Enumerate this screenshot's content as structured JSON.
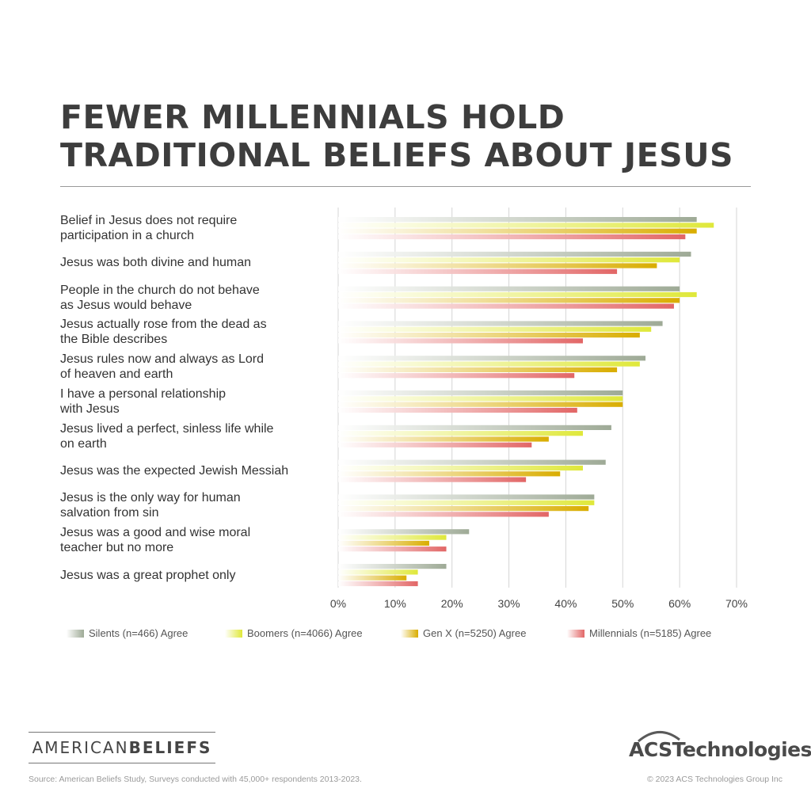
{
  "title_lines": [
    "FEWER MILLENNIALS HOLD",
    "TRADITIONAL BELIEFS ABOUT JESUS"
  ],
  "chart_data": {
    "type": "bar",
    "orientation": "horizontal",
    "categories": [
      "Belief in Jesus does not require\nparticipation in a church",
      "Jesus was both divine and human",
      "People in the church do not behave\nas Jesus would behave",
      "Jesus actually rose from the dead as\nthe Bible describes",
      "Jesus rules now and always as Lord\nof heaven and earth",
      "I have a personal relationship\nwith Jesus",
      "Jesus lived a perfect, sinless life while\non earth",
      "Jesus was the expected Jewish Messiah",
      "Jesus is the only way for human\nsalvation from sin",
      "Jesus was a good and wise moral\nteacher but no more",
      "Jesus was a great prophet only"
    ],
    "series": [
      {
        "name": "Silents (n=466) Agree",
        "color": "#9eaa96",
        "values": [
          63,
          62,
          60,
          57,
          54,
          50,
          48,
          47,
          45,
          23,
          19
        ]
      },
      {
        "name": "Boomers (n=4066) Agree",
        "color": "#dfe83a",
        "values": [
          66,
          60,
          63,
          55,
          53,
          50,
          43,
          43,
          45,
          19,
          14
        ]
      },
      {
        "name": "Gen X (n=5250) Agree",
        "color": "#d9ad00",
        "values": [
          63,
          56,
          60,
          53,
          49,
          50,
          37,
          39,
          44,
          16,
          12
        ]
      },
      {
        "name": "Millennials (n=5185) Agree",
        "color": "#e26666",
        "values": [
          61,
          49,
          59,
          43,
          41.5,
          42,
          34,
          33,
          37,
          19,
          14
        ]
      }
    ],
    "x_ticks": [
      "0%",
      "10%",
      "20%",
      "30%",
      "40%",
      "50%",
      "60%",
      "70%"
    ],
    "xlim": [
      0,
      70
    ],
    "grid": true,
    "legend_position": "bottom"
  },
  "branding": {
    "left_logo_light": "AME",
    "left_logo_r": "R",
    "left_logo_rest": "ICAN",
    "left_logo_bold": "BELIEFS",
    "right_logo": "ACSTechnologies."
  },
  "footer": {
    "source": "Source: American Beliefs Study, Surveys conducted with 45,000+ respondents 2013-2023.",
    "copyright": "© 2023 ACS Technologies Group Inc"
  }
}
